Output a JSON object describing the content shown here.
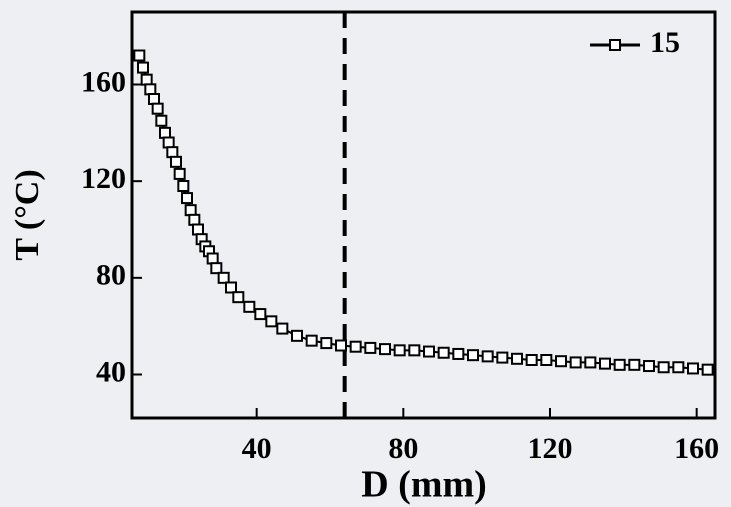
{
  "chart_data": {
    "type": "line",
    "xlabel": "D (mm)",
    "ylabel": "T (°C)",
    "x": [
      8,
      9,
      10,
      11,
      12,
      13,
      14,
      15,
      16,
      17,
      18,
      19,
      20,
      21,
      22,
      23,
      24,
      25,
      26,
      27,
      28,
      29,
      31,
      33,
      35,
      38,
      41,
      44,
      47,
      51,
      55,
      59,
      63,
      67,
      71,
      75,
      79,
      83,
      87,
      91,
      95,
      99,
      103,
      107,
      111,
      115,
      119,
      123,
      127,
      131,
      135,
      139,
      143,
      147,
      151,
      155,
      159,
      163
    ],
    "series": [
      {
        "name": "15",
        "color": "#000000",
        "values": [
          172,
          167,
          162,
          158,
          154,
          150,
          145,
          140,
          136,
          132,
          128,
          123,
          118,
          113,
          108,
          104,
          100,
          96,
          93,
          91,
          88,
          84,
          80,
          76,
          72,
          68,
          65,
          62,
          59,
          56,
          54,
          53,
          52,
          51.5,
          51,
          50.5,
          50,
          50,
          49.5,
          49,
          48.5,
          48,
          47.5,
          47,
          46.5,
          46,
          46,
          45.5,
          45,
          45,
          44.5,
          44,
          44,
          43.5,
          43,
          43,
          42.5,
          42
        ]
      }
    ],
    "xlim": [
      6,
      165
    ],
    "ylim": [
      22,
      190
    ],
    "xticks": [
      40,
      80,
      120,
      160
    ],
    "yticks": [
      40,
      80,
      120,
      160
    ],
    "vline": 64,
    "grid": false,
    "legend": "top-right"
  }
}
